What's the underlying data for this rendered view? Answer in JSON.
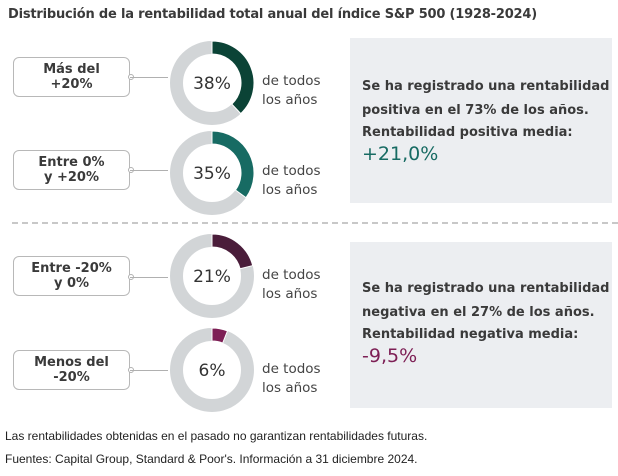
{
  "title": "Distribución de la rentabilidad total anual del índice S&P 500 (1928-2024)",
  "chart_data": {
    "type": "pie",
    "title": "Distribución de la rentabilidad total anual del índice S&P 500 (1928-2024)",
    "categories": [
      "Más del +20%",
      "Entre 0% y +20%",
      "Entre -20% y 0%",
      "Menos del -20%"
    ],
    "values": [
      38,
      35,
      21,
      6
    ],
    "unit": "% de todos los años",
    "colors": [
      "#0b4336",
      "#176b63",
      "#4a1d3a",
      "#7d1f55"
    ],
    "track_color": "#d2d5d7"
  },
  "rows": [
    {
      "label_line1": "Más del",
      "label_line2": "+20%",
      "pct_text": "38%",
      "value": 38,
      "color": "#0b4336",
      "side_line1": "de todos",
      "side_line2": "los años"
    },
    {
      "label_line1": "Entre 0%",
      "label_line2": "y +20%",
      "pct_text": "35%",
      "value": 35,
      "color": "#176b63",
      "side_line1": "de todos",
      "side_line2": "los años"
    },
    {
      "label_line1": "Entre -20%",
      "label_line2": "y 0%",
      "pct_text": "21%",
      "value": 21,
      "color": "#4a1d3a",
      "side_line1": "de todos",
      "side_line2": "los años"
    },
    {
      "label_line1": "Menos del",
      "label_line2": "-20%",
      "pct_text": "6%",
      "value": 6,
      "color": "#7d1f55",
      "side_line1": "de todos",
      "side_line2": "los años"
    }
  ],
  "panels": {
    "positive": {
      "line1": "Se ha registrado una rentabilidad",
      "line2": "positiva en el 73% de los años.",
      "sub": "Rentabilidad positiva media:",
      "value": "+21,0%",
      "value_color": "#176b63"
    },
    "negative": {
      "line1": "Se ha registrado una rentabilidad",
      "line2": "negativa en el 27% de los años.",
      "sub": "Rentabilidad negativa media:",
      "value": "-9,5%",
      "value_color": "#7d1f55"
    }
  },
  "footer": {
    "line1": "Las rentabilidades obtenidas en el pasado no garantizan rentabilidades futuras.",
    "line2": "Fuentes: Capital Group, Standard & Poor's. Información a 31 diciembre 2024."
  }
}
